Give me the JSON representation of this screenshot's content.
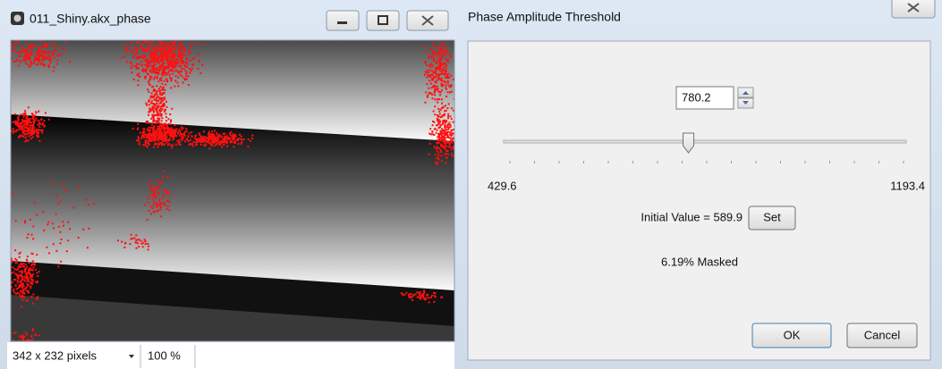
{
  "image_window": {
    "title": "011_Shiny.akx_phase",
    "size_label": "342 x 232 pixels",
    "zoom_label": "100 %"
  },
  "dialog": {
    "title": "Phase Amplitude Threshold",
    "spin_value": "780.2",
    "slider_min": "429.6",
    "slider_max": "1193.4",
    "initial_value_label": "Initial Value = 589.9",
    "set_button": "Set",
    "masked_label": "6.19% Masked",
    "ok_button": "OK",
    "cancel_button": "Cancel"
  }
}
